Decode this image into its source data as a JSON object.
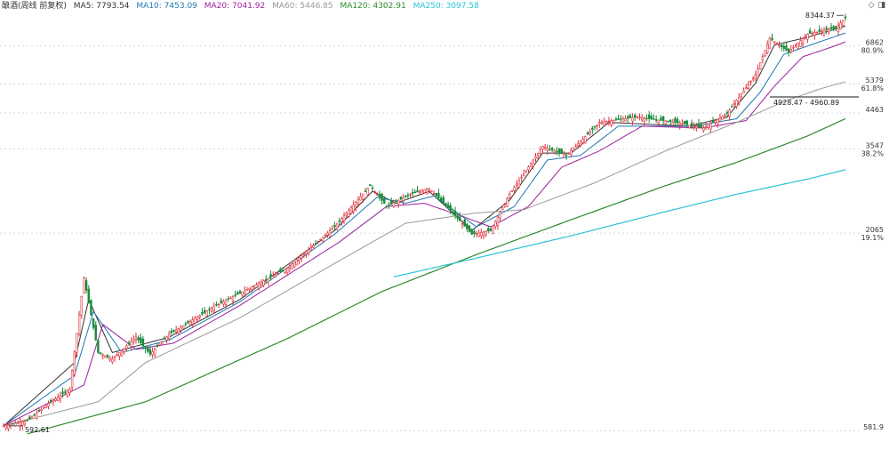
{
  "title": "酿酒(周线 前复权)",
  "legend": [
    {
      "key": "ma5",
      "label": "MA5: 7793.54",
      "color": "#333333"
    },
    {
      "key": "ma10",
      "label": "MA10: 7453.09",
      "color": "#1f77b4"
    },
    {
      "key": "ma20",
      "label": "MA20: 7041.92",
      "color": "#9b1f9b"
    },
    {
      "key": "ma60",
      "label": "MA60: 5446.85",
      "color": "#999999"
    },
    {
      "key": "ma120",
      "label": "MA120: 4302.91",
      "color": "#2e8b2e"
    },
    {
      "key": "ma250",
      "label": "MA250: 3097.58",
      "color": "#27c4d8"
    }
  ],
  "icons": [
    "diamond-icon",
    "window-icon"
  ],
  "price_labels": [
    {
      "value": 6862,
      "text": "6862",
      "pct": "80.9%"
    },
    {
      "value": 5379,
      "text": "5379",
      "pct": "61.8%"
    },
    {
      "value": 4463,
      "text": "4463",
      "pct": ""
    },
    {
      "value": 3547,
      "text": "3547",
      "pct": "38.2%"
    },
    {
      "value": 2065,
      "text": "2065",
      "pct": "19.1%"
    },
    {
      "value": 581.9,
      "text": "581.9",
      "pct": ""
    }
  ],
  "annotations": {
    "high": "8344.37",
    "low": "592.61",
    "range_line": "4928.47 - 4960.89"
  },
  "colors": {
    "up": "#e0303a",
    "down": "#1a8a3a",
    "grid": "#d8d8d8",
    "axis_text": "#333333"
  },
  "chart_data": {
    "type": "candlestick",
    "title": "酿酒(周线 前复权)",
    "ylim": [
      480,
      8500
    ],
    "yscale": "log",
    "close_keypoints": [
      [
        0,
        600
      ],
      [
        10,
        620
      ],
      [
        20,
        700
      ],
      [
        28,
        760
      ],
      [
        34,
        1550
      ],
      [
        40,
        960
      ],
      [
        46,
        920
      ],
      [
        56,
        1060
      ],
      [
        62,
        950
      ],
      [
        70,
        1080
      ],
      [
        90,
        1300
      ],
      [
        104,
        1450
      ],
      [
        120,
        1650
      ],
      [
        140,
        2150
      ],
      [
        155,
        2800
      ],
      [
        162,
        2450
      ],
      [
        172,
        2650
      ],
      [
        180,
        2750
      ],
      [
        190,
        2350
      ],
      [
        198,
        2050
      ],
      [
        206,
        2100
      ],
      [
        214,
        2650
      ],
      [
        228,
        3600
      ],
      [
        238,
        3400
      ],
      [
        252,
        4200
      ],
      [
        268,
        4350
      ],
      [
        284,
        4200
      ],
      [
        296,
        4050
      ],
      [
        306,
        4450
      ],
      [
        318,
        5700
      ],
      [
        324,
        7200
      ],
      [
        332,
        6600
      ],
      [
        340,
        7400
      ],
      [
        352,
        7700
      ],
      [
        356,
        8200
      ]
    ],
    "series": [
      {
        "name": "MA5",
        "values": [
          [
            0,
            600
          ],
          [
            30,
            900
          ],
          [
            36,
            1350
          ],
          [
            46,
            960
          ],
          [
            70,
            1060
          ],
          [
            100,
            1350
          ],
          [
            140,
            2100
          ],
          [
            156,
            2700
          ],
          [
            166,
            2500
          ],
          [
            180,
            2700
          ],
          [
            198,
            2100
          ],
          [
            214,
            2550
          ],
          [
            228,
            3450
          ],
          [
            240,
            3450
          ],
          [
            256,
            4200
          ],
          [
            290,
            4100
          ],
          [
            306,
            4350
          ],
          [
            318,
            5400
          ],
          [
            326,
            6900
          ],
          [
            340,
            7250
          ],
          [
            356,
            7790
          ]
        ]
      },
      {
        "name": "MA10",
        "values": [
          [
            0,
            600
          ],
          [
            30,
            830
          ],
          [
            38,
            1250
          ],
          [
            50,
            960
          ],
          [
            70,
            1040
          ],
          [
            100,
            1330
          ],
          [
            140,
            2050
          ],
          [
            158,
            2600
          ],
          [
            170,
            2500
          ],
          [
            182,
            2620
          ],
          [
            200,
            2150
          ],
          [
            216,
            2450
          ],
          [
            230,
            3300
          ],
          [
            244,
            3400
          ],
          [
            260,
            4100
          ],
          [
            292,
            4100
          ],
          [
            310,
            4300
          ],
          [
            320,
            5100
          ],
          [
            330,
            6500
          ],
          [
            344,
            7000
          ],
          [
            356,
            7450
          ]
        ]
      },
      {
        "name": "MA20",
        "values": [
          [
            0,
            600
          ],
          [
            34,
            780
          ],
          [
            42,
            1150
          ],
          [
            56,
            980
          ],
          [
            72,
            1020
          ],
          [
            100,
            1300
          ],
          [
            142,
            1950
          ],
          [
            162,
            2450
          ],
          [
            178,
            2500
          ],
          [
            194,
            2300
          ],
          [
            206,
            2150
          ],
          [
            222,
            2450
          ],
          [
            236,
            3150
          ],
          [
            252,
            3500
          ],
          [
            270,
            4100
          ],
          [
            296,
            4050
          ],
          [
            314,
            4250
          ],
          [
            326,
            5300
          ],
          [
            338,
            6400
          ],
          [
            350,
            6800
          ],
          [
            356,
            7040
          ]
        ]
      },
      {
        "name": "MA60",
        "values": [
          [
            0,
            600
          ],
          [
            40,
            700
          ],
          [
            60,
            900
          ],
          [
            100,
            1200
          ],
          [
            140,
            1700
          ],
          [
            170,
            2200
          ],
          [
            200,
            2350
          ],
          [
            220,
            2400
          ],
          [
            250,
            2850
          ],
          [
            280,
            3500
          ],
          [
            310,
            4200
          ],
          [
            330,
            4800
          ],
          [
            345,
            5200
          ],
          [
            356,
            5450
          ]
        ]
      },
      {
        "name": "MA120",
        "values": [
          [
            10,
            570
          ],
          [
            60,
            700
          ],
          [
            120,
            1050
          ],
          [
            160,
            1420
          ],
          [
            200,
            1800
          ],
          [
            240,
            2250
          ],
          [
            280,
            2800
          ],
          [
            310,
            3250
          ],
          [
            340,
            3850
          ],
          [
            356,
            4300
          ]
        ]
      },
      {
        "name": "MA250",
        "values": [
          [
            165,
            1560
          ],
          [
            200,
            1760
          ],
          [
            240,
            2030
          ],
          [
            280,
            2370
          ],
          [
            310,
            2650
          ],
          [
            340,
            2920
          ],
          [
            356,
            3100
          ]
        ]
      }
    ]
  }
}
